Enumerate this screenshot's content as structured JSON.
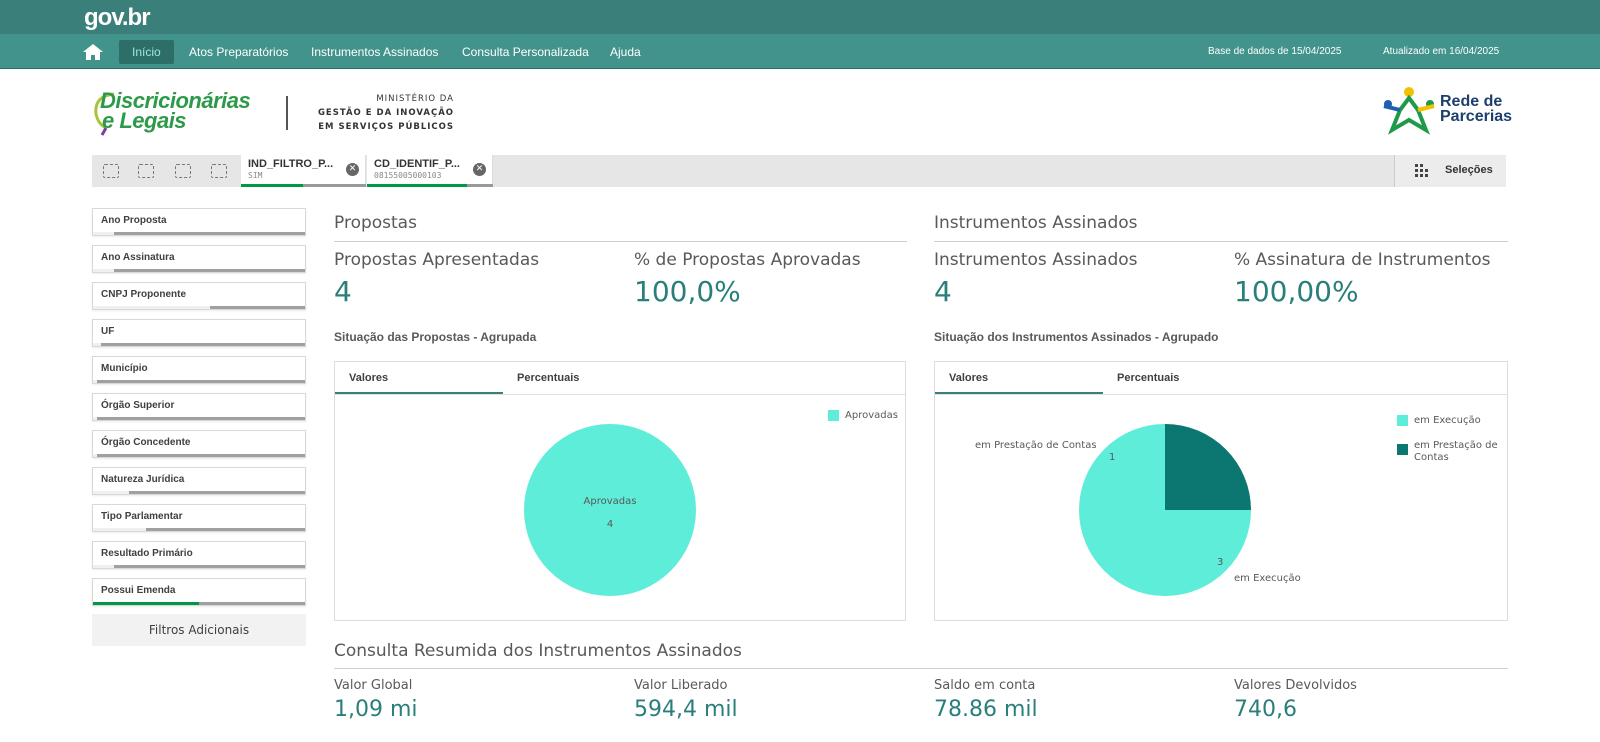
{
  "header": {
    "logo": "gov.br",
    "nav": [
      "Início",
      "Atos Preparatórios",
      "Instrumentos Assinados",
      "Consulta Personalizada",
      "Ajuda"
    ],
    "base_dados": "Base de dados de 15/04/2025",
    "atualizado": "Atualizado em 16/04/2025"
  },
  "logos": {
    "disc_line1": "Discricionárias",
    "disc_line2": "e Legais",
    "ministry_line1": "MINISTÉRIO DA",
    "ministry_line2": "GESTÃO E DA INOVAÇÃO",
    "ministry_line3": "EM SERVIÇOS PÚBLICOS",
    "rede_line1": "Rede de",
    "rede_line2": "Parcerias"
  },
  "selections": {
    "chips": [
      {
        "name": "IND_FILTRO_P...",
        "value": "SIM"
      },
      {
        "name": "CD_IDENTIF_P...",
        "value": "08155005000103"
      }
    ],
    "button": "Seleções"
  },
  "filters": {
    "items": [
      {
        "label": "Ano Proposta",
        "fill": 0.1
      },
      {
        "label": "Ano Assinatura",
        "fill": 0.1
      },
      {
        "label": "CNPJ Proponente",
        "fill": 0.55
      },
      {
        "label": "UF",
        "fill": 0.04
      },
      {
        "label": "Município",
        "fill": 0.02
      },
      {
        "label": "Órgão Superior",
        "fill": 0.02
      },
      {
        "label": "Órgão Concedente",
        "fill": 0.02
      },
      {
        "label": "Natureza Jurídica",
        "fill": 0.17
      },
      {
        "label": "Tipo Parlamentar",
        "fill": 0.25
      },
      {
        "label": "Resultado Primário",
        "fill": 0.1
      },
      {
        "label": "Possui Emenda",
        "fill": 0.5
      }
    ],
    "more": "Filtros Adicionais"
  },
  "propostas": {
    "title": "Propostas",
    "kpi1_label": "Propostas Apresentadas",
    "kpi1_value": "4",
    "kpi2_label": "% de Propostas Aprovadas",
    "kpi2_value": "100,0%",
    "chart_title": "Situação das Propostas - Agrupada",
    "tabs": [
      "Valores",
      "Percentuais"
    ]
  },
  "instrumentos": {
    "title": "Instrumentos Assinados",
    "kpi1_label": "Instrumentos Assinados",
    "kpi1_value": "4",
    "kpi2_label": "% Assinatura de Instrumentos",
    "kpi2_value": "100,00%",
    "chart_title": "Situação dos Instrumentos Assinados - Agrupado",
    "tabs": [
      "Valores",
      "Percentuais"
    ]
  },
  "colors": {
    "teal_light": "#5eedd8",
    "teal_dark": "#0c7670",
    "header": "#3b7f7a",
    "value": "#2a7f7a"
  },
  "chart_data": [
    {
      "type": "pie",
      "categories": [
        "Aprovadas"
      ],
      "values": [
        4
      ],
      "legend": [
        "Aprovadas"
      ],
      "legend_position": "top-right"
    },
    {
      "type": "pie",
      "categories": [
        "em Execução",
        "em Prestação de Contas"
      ],
      "values": [
        3,
        1
      ],
      "legend": [
        "em Execução",
        "em Prestação de Contas"
      ],
      "legend_position": "top-right"
    }
  ],
  "resumo": {
    "title": "Consulta Resumida dos Instrumentos Assinados",
    "items": [
      {
        "label": "Valor Global",
        "value": "1,09 mi"
      },
      {
        "label": "Valor Liberado",
        "value": "594,4 mil"
      },
      {
        "label": "Saldo em conta",
        "value": "78.86 mil"
      },
      {
        "label": "Valores Devolvidos",
        "value": "740,6"
      }
    ]
  }
}
